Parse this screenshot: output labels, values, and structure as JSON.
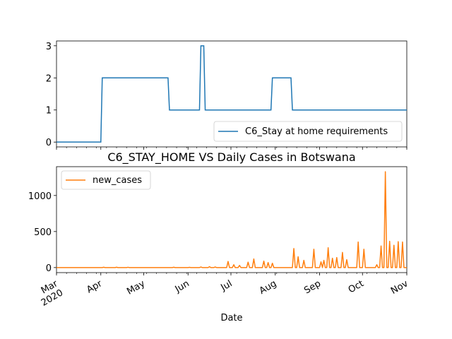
{
  "chart_data": [
    {
      "type": "line",
      "title": "",
      "xlabel": "",
      "ylabel": "",
      "x_range": [
        "2020-03-01",
        "2020-11-01"
      ],
      "ylim": [
        -0.15,
        3.15
      ],
      "yticks": [
        0,
        1,
        2,
        3
      ],
      "show_x_tick_labels": false,
      "legend": "lower-right",
      "grid": false,
      "series": [
        {
          "name": "C6_Stay at home requirements",
          "color": "#1f77b4",
          "x": [
            "2020-03-01",
            "2020-04-01",
            "2020-04-02",
            "2020-05-18",
            "2020-05-19",
            "2020-06-09",
            "2020-06-10",
            "2020-06-12",
            "2020-06-13",
            "2020-07-29",
            "2020-07-30",
            "2020-08-12",
            "2020-08-13",
            "2020-11-01"
          ],
          "y": [
            0,
            0,
            2,
            2,
            1,
            1,
            3,
            3,
            1,
            1,
            2,
            2,
            1,
            1
          ]
        }
      ]
    },
    {
      "type": "line",
      "title": "C6_STAY_HOME VS Daily Cases in Botswana",
      "xlabel": "Date",
      "ylabel": "",
      "x_range": [
        "2020-03-01",
        "2020-11-01"
      ],
      "ylim": [
        -70,
        1400
      ],
      "yticks": [
        0,
        500,
        1000
      ],
      "xtick_dates": [
        "2020-03-01",
        "2020-04-01",
        "2020-05-01",
        "2020-06-01",
        "2020-07-01",
        "2020-08-01",
        "2020-09-01",
        "2020-10-01",
        "2020-11-01"
      ],
      "xtick_labels": [
        "Mar\n2020",
        "Apr",
        "May",
        "Jun",
        "Jul",
        "Aug",
        "Sep",
        "Oct",
        "Nov"
      ],
      "legend": "upper-left",
      "grid": false,
      "series": [
        {
          "name": "new_cases",
          "color": "#ff7f0e",
          "peaks": [
            [
              "2020-04-03",
              5
            ],
            [
              "2020-04-12",
              5
            ],
            [
              "2020-04-20",
              4
            ],
            [
              "2020-05-22",
              5
            ],
            [
              "2020-06-02",
              3
            ],
            [
              "2020-06-10",
              8
            ],
            [
              "2020-06-16",
              12
            ],
            [
              "2020-06-20",
              8
            ],
            [
              "2020-06-29",
              85
            ],
            [
              "2020-07-03",
              40
            ],
            [
              "2020-07-07",
              30
            ],
            [
              "2020-07-13",
              75
            ],
            [
              "2020-07-17",
              120
            ],
            [
              "2020-07-24",
              90
            ],
            [
              "2020-07-27",
              70
            ],
            [
              "2020-07-30",
              60
            ],
            [
              "2020-08-14",
              265
            ],
            [
              "2020-08-17",
              150
            ],
            [
              "2020-08-21",
              100
            ],
            [
              "2020-08-28",
              255
            ],
            [
              "2020-09-02",
              80
            ],
            [
              "2020-09-04",
              100
            ],
            [
              "2020-09-07",
              275
            ],
            [
              "2020-09-10",
              130
            ],
            [
              "2020-09-13",
              140
            ],
            [
              "2020-09-17",
              210
            ],
            [
              "2020-09-20",
              110
            ],
            [
              "2020-09-28",
              355
            ],
            [
              "2020-10-02",
              255
            ],
            [
              "2020-10-11",
              40
            ],
            [
              "2020-10-14",
              300
            ],
            [
              "2020-10-17",
              1330
            ],
            [
              "2020-10-20",
              365
            ],
            [
              "2020-10-23",
              310
            ],
            [
              "2020-10-26",
              360
            ],
            [
              "2020-10-29",
              355
            ]
          ]
        }
      ]
    }
  ]
}
